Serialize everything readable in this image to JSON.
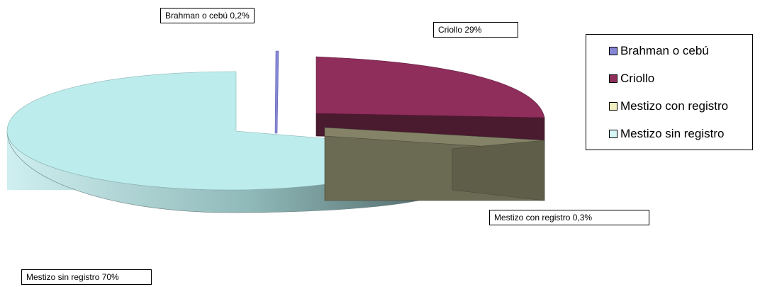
{
  "chart_data": {
    "type": "pie",
    "style": "3d-exploded",
    "categories": [
      "Brahman o cebú",
      "Criollo",
      "Mestizo con registro",
      "Mestizo sin registro"
    ],
    "values": [
      0.2,
      29,
      0.3,
      70
    ],
    "colors": [
      "#8686d6",
      "#8f2d5b",
      "#707056",
      "#b9ebec"
    ],
    "data_labels": [
      "Brahman o cebú 0,2%",
      "Criollo 29%",
      "Mestizo con registro 0,3%",
      "Mestizo sin registro 70%"
    ],
    "legend": {
      "position": "right",
      "entries": [
        "Brahman o cebú",
        "Criollo",
        "Mestizo con registro",
        "Mestizo sin registro"
      ]
    }
  }
}
